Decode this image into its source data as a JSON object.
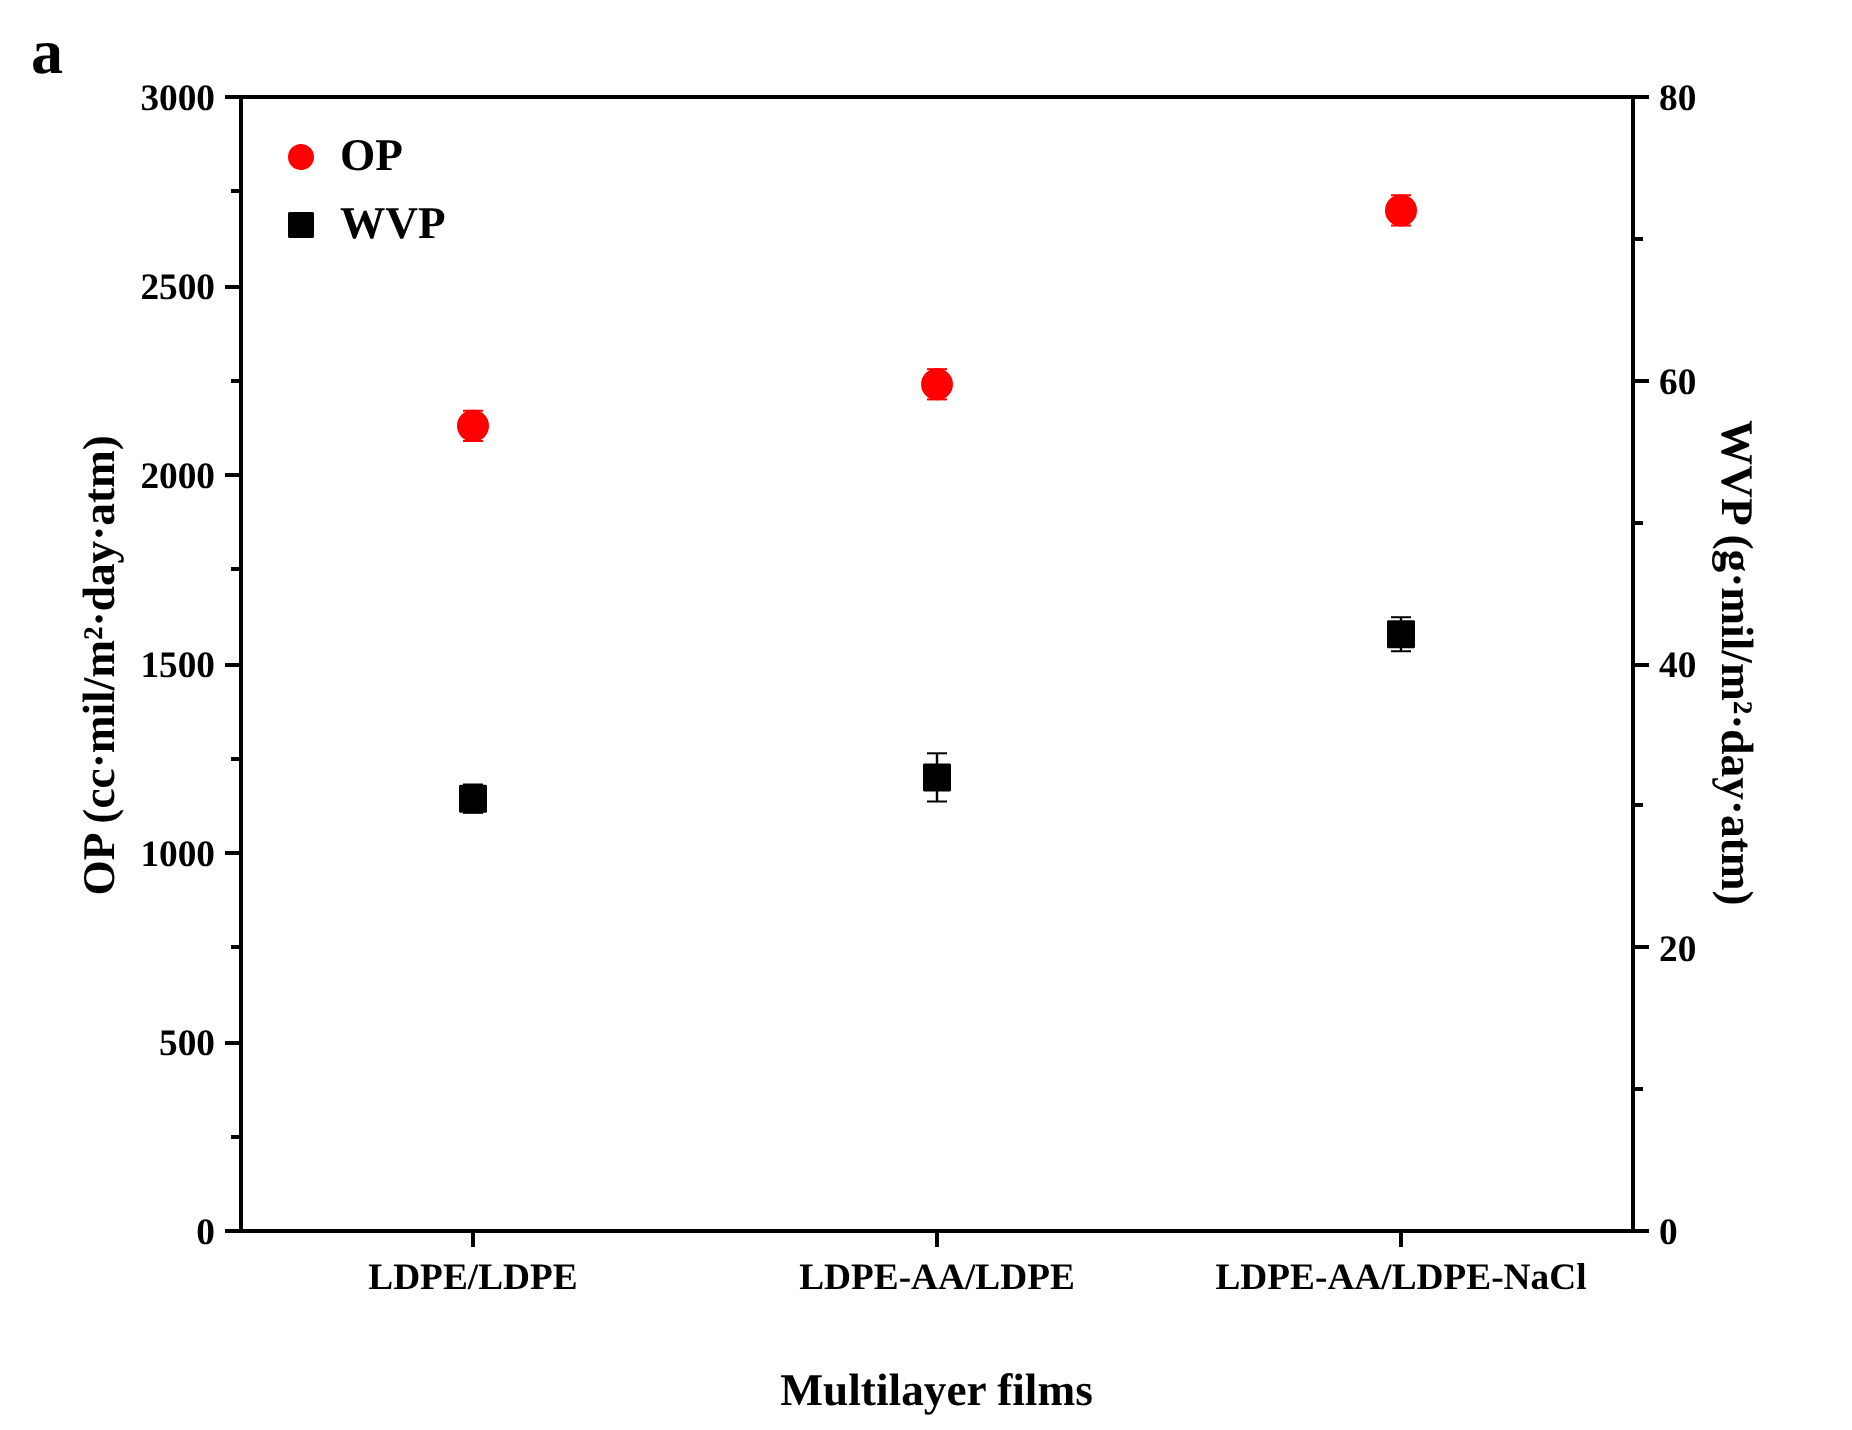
{
  "chart_data": {
    "type": "scatter",
    "annotations": [
      "a"
    ],
    "xlabel": "Multilayer films",
    "ylabel": "OP (cc·mil/m²·day·atm)",
    "y2label": "WVP (g·mil/m²·day·atm)",
    "categories": [
      "LDPE/LDPE",
      "LDPE-AA/LDPE",
      "LDPE-AA/LDPE-NaCl"
    ],
    "series": [
      {
        "name": "OP",
        "color": "#ff0000",
        "marker": "circle",
        "values": [
          2130,
          2240,
          2700
        ],
        "errors": [
          40,
          40,
          40
        ]
      },
      {
        "name": "WVP",
        "color": "#000000",
        "marker": "square",
        "axis": "y2",
        "values": [
          30.5,
          32.0,
          42.1
        ],
        "errors": [
          1.0,
          1.7,
          1.2
        ]
      }
    ],
    "ylim": [
      0,
      3000
    ],
    "yticks": [
      0,
      500,
      1000,
      1500,
      2000,
      2500,
      3000
    ],
    "y2lim": [
      0,
      80
    ],
    "y2ticks": [
      0,
      20,
      40,
      60,
      80
    ],
    "grid": false,
    "legend": "top left"
  }
}
